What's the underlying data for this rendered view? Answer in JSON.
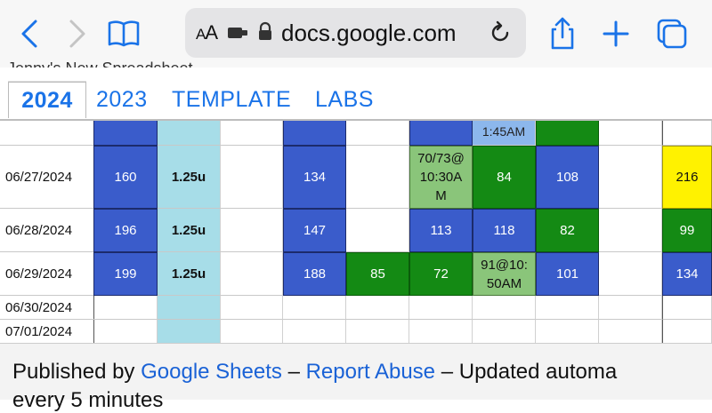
{
  "browser": {
    "text_size_label": "AA",
    "url": "docs.google.com"
  },
  "sheet": {
    "title": "Jenny's New Spreadsheet",
    "tabs": [
      "2024",
      "2023",
      "TEMPLATE",
      "LABS"
    ],
    "active_tab": "2024"
  },
  "grid": {
    "top_partial": {
      "col6": "1:45AM"
    },
    "rows": [
      {
        "date": "06/27/2024",
        "c1": "160",
        "c2": "1.25u",
        "c4": "134",
        "c6": "70/73@ 10:30A M",
        "c7": "84",
        "c8": "108",
        "c10": "216"
      },
      {
        "date": "06/28/2024",
        "c1": "196",
        "c2": "1.25u",
        "c4": "147",
        "c6": "113",
        "c7": "118",
        "c8": "82",
        "c10": "99"
      },
      {
        "date": "06/29/2024",
        "c1": "199",
        "c2": "1.25u",
        "c4": "188",
        "c5": "85",
        "c6": "72",
        "c7": "91@10: 50AM",
        "c8": "101",
        "c10": "134"
      },
      {
        "date": "06/30/2024"
      },
      {
        "date": "07/01/2024"
      }
    ]
  },
  "footer": {
    "published_by": "Published by",
    "google_sheets": "Google Sheets",
    "dash1": "–",
    "report_abuse": "Report Abuse",
    "dash2": "–",
    "updated": "Updated automa",
    "line2": "every 5 minutes"
  }
}
